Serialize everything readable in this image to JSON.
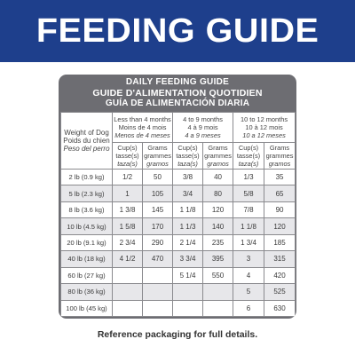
{
  "banner": {
    "title": "FEEDING GUIDE"
  },
  "guide": {
    "title_en": "DAILY FEEDING GUIDE",
    "title_fr": "GUIDE D'ALIMENTATION QUOTIDIEN",
    "title_es": "GUÍA DE ALIMENTACIÓN DIARIA",
    "weight_header": {
      "en": "Weight of Dog",
      "fr": "Poids du chien",
      "es": "Peso del perro"
    },
    "age_groups": [
      {
        "en": "Less than 4 months",
        "fr": "Moins de 4 mois",
        "es": "Menos de 4 meses"
      },
      {
        "en": "4 to 9 months",
        "fr": "4 à 9 mois",
        "es": "4 a 9 meses"
      },
      {
        "en": "10 to 12 months",
        "fr": "10 à 12 mois",
        "es": "10 a 12 meses"
      }
    ],
    "units": {
      "cup": {
        "en": "Cup(s)",
        "fr": "tasse(s)",
        "es": "taza(s)"
      },
      "grams": {
        "en": "Grams",
        "fr": "grammes",
        "es": "gramos"
      }
    },
    "rows": [
      {
        "weight": "2 lb (0.9 kg)",
        "c1": "1/2",
        "g1": "50",
        "c2": "3/8",
        "g2": "40",
        "c3": "1/3",
        "g3": "35"
      },
      {
        "weight": "5 lb (2.3 kg)",
        "c1": "1",
        "g1": "105",
        "c2": "3/4",
        "g2": "80",
        "c3": "5/8",
        "g3": "65"
      },
      {
        "weight": "8 lb (3.6 kg)",
        "c1": "1 3/8",
        "g1": "145",
        "c2": "1 1/8",
        "g2": "120",
        "c3": "7/8",
        "g3": "90"
      },
      {
        "weight": "10 lb (4.5 kg)",
        "c1": "1 5/8",
        "g1": "170",
        "c2": "1 1/3",
        "g2": "140",
        "c3": "1 1/8",
        "g3": "120"
      },
      {
        "weight": "20 lb (9.1 kg)",
        "c1": "2 3/4",
        "g1": "290",
        "c2": "2 1/4",
        "g2": "235",
        "c3": "1 3/4",
        "g3": "185"
      },
      {
        "weight": "40 lb (18 kg)",
        "c1": "4 1/2",
        "g1": "470",
        "c2": "3 3/4",
        "g2": "395",
        "c3": "3",
        "g3": "315"
      },
      {
        "weight": "60 lb (27 kg)",
        "c1": "",
        "g1": "",
        "c2": "5 1/4",
        "g2": "550",
        "c3": "4",
        "g3": "420"
      },
      {
        "weight": "80 lb (36 kg)",
        "c1": "",
        "g1": "",
        "c2": "",
        "g2": "",
        "c3": "5",
        "g3": "525"
      },
      {
        "weight": "100 lb (45 kg)",
        "c1": "",
        "g1": "",
        "c2": "",
        "g2": "",
        "c3": "6",
        "g3": "630"
      }
    ]
  },
  "footnote": "Reference packaging for full details.",
  "colors": {
    "banner_blue": "#1e3f8c",
    "card_gray": "#6d6d72",
    "row_shade": "#e7e7ea"
  }
}
